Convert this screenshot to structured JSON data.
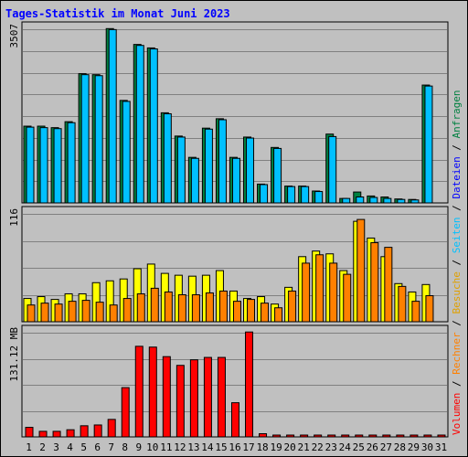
{
  "title": "Tages-Statistik im Monat Juni 2023",
  "chart_data": [
    {
      "type": "bar",
      "name": "requests-files",
      "categories": [
        "1",
        "2",
        "3",
        "4",
        "5",
        "6",
        "7",
        "8",
        "9",
        "10",
        "11",
        "12",
        "13",
        "14",
        "15",
        "16",
        "17",
        "18",
        "19",
        "20",
        "21",
        "22",
        "23",
        "24",
        "25",
        "26",
        "27",
        "28",
        "29",
        "30",
        "31"
      ],
      "weekend": [
        3,
        4,
        10,
        11,
        17,
        18,
        24,
        25,
        31
      ],
      "ymax": 3507,
      "ymax_label": "3507",
      "series": [
        {
          "name": "Anfragen",
          "color": "#008040",
          "values": [
            1550,
            1550,
            1520,
            1640,
            2610,
            2590,
            3520,
            2070,
            3200,
            3130,
            1820,
            1350,
            920,
            1510,
            1700,
            920,
            1330,
            380,
            1120,
            340,
            340,
            240,
            1390,
            90,
            220,
            140,
            120,
            80,
            70,
            2380,
            0
          ]
        },
        {
          "name": "Dateien",
          "color": "#00C0FF",
          "values": [
            1530,
            1520,
            1500,
            1620,
            2590,
            2570,
            3500,
            2050,
            3180,
            3110,
            1800,
            1330,
            900,
            1490,
            1680,
            900,
            1310,
            370,
            1100,
            330,
            330,
            230,
            1340,
            90,
            120,
            110,
            90,
            70,
            60,
            2360,
            0
          ]
        }
      ]
    },
    {
      "type": "bar",
      "name": "pages-visits-hosts",
      "categories": [
        "1",
        "2",
        "3",
        "4",
        "5",
        "6",
        "7",
        "8",
        "9",
        "10",
        "11",
        "12",
        "13",
        "14",
        "15",
        "16",
        "17",
        "18",
        "19",
        "20",
        "21",
        "22",
        "23",
        "24",
        "25",
        "26",
        "27",
        "28",
        "29",
        "30",
        "31"
      ],
      "ymax": 116,
      "ymax_label": "116",
      "series": [
        {
          "name": "Seiten",
          "color": "#00E0FF",
          "values": [
            0,
            0,
            0,
            0,
            0,
            0,
            0,
            0,
            0,
            0,
            0,
            0,
            0,
            0,
            0,
            0,
            0,
            0,
            0,
            0,
            0,
            0,
            0,
            0,
            0,
            0,
            0,
            0,
            0,
            0,
            0
          ]
        },
        {
          "name": "Besuche",
          "color": "#FFFF00",
          "values": [
            25,
            27,
            24,
            30,
            30,
            42,
            44,
            46,
            57,
            62,
            52,
            50,
            49,
            50,
            55,
            33,
            25,
            27,
            19,
            37,
            70,
            76,
            73,
            55,
            108,
            90,
            70,
            41,
            32,
            40,
            0
          ]
        },
        {
          "name": "Rechner",
          "color": "#FF8000",
          "values": [
            18,
            20,
            19,
            22,
            23,
            21,
            18,
            25,
            30,
            36,
            32,
            29,
            29,
            31,
            33,
            22,
            24,
            20,
            15,
            33,
            63,
            72,
            63,
            51,
            110,
            85,
            80,
            38,
            22,
            28,
            0
          ]
        }
      ]
    },
    {
      "type": "bar",
      "name": "volume",
      "categories": [
        "1",
        "2",
        "3",
        "4",
        "5",
        "6",
        "7",
        "8",
        "9",
        "10",
        "11",
        "12",
        "13",
        "14",
        "15",
        "16",
        "17",
        "18",
        "19",
        "20",
        "21",
        "22",
        "23",
        "24",
        "25",
        "26",
        "27",
        "28",
        "29",
        "30",
        "31"
      ],
      "ymax": 131.12,
      "ymax_label": "131.12 MB",
      "series": [
        {
          "name": "Volumen",
          "color": "#FF0000",
          "values": [
            12,
            7,
            7,
            9,
            14,
            15,
            22,
            62,
            114,
            113,
            101,
            90,
            97,
            100,
            100,
            43,
            132,
            4,
            1,
            1,
            1,
            1,
            1,
            1,
            1,
            1,
            1,
            1,
            1,
            1,
            1
          ]
        }
      ]
    }
  ],
  "legend": [
    {
      "text": "Volumen",
      "color": "#FF0000"
    },
    {
      "text": " / ",
      "color": "#000000"
    },
    {
      "text": "Rechner",
      "color": "#FF8000"
    },
    {
      "text": " / ",
      "color": "#000000"
    },
    {
      "text": "Besuche",
      "color": "#E0A000"
    },
    {
      "text": " / ",
      "color": "#000000"
    },
    {
      "text": "Seiten",
      "color": "#00C0FF"
    },
    {
      "text": " / ",
      "color": "#000000"
    },
    {
      "text": "Dateien",
      "color": "#0000FF"
    },
    {
      "text": " / ",
      "color": "#000000"
    },
    {
      "text": "Anfragen",
      "color": "#008040"
    }
  ],
  "colors": {
    "weekday_label": "#000000",
    "weekend_label": "#008040",
    "panel_bg": "#C0C0C0",
    "gridline": "#808080"
  }
}
